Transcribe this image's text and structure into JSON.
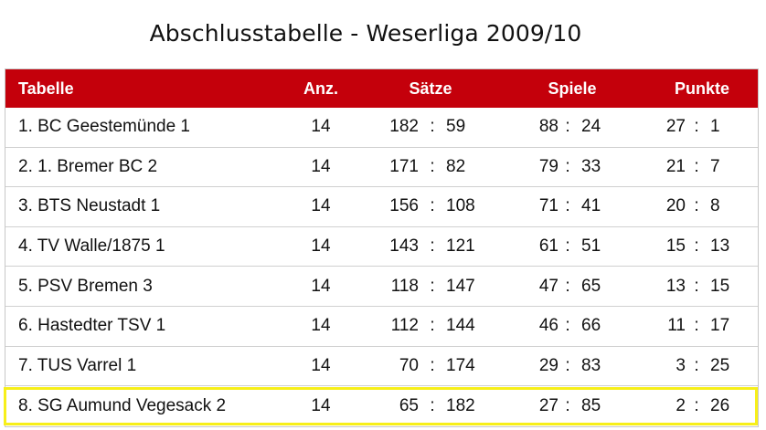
{
  "title": "Abschlusstabelle - Weserliga 2009/10",
  "header": {
    "team": "Tabelle",
    "anz": "Anz.",
    "saetze": "Sätze",
    "spiele": "Spiele",
    "punkte": "Punkte"
  },
  "colon": ":",
  "rows": [
    {
      "team": "1. BC Geestemünde 1",
      "anz": "14",
      "saetze_won": "182",
      "saetze_lost": "59",
      "spiele_won": "88",
      "spiele_lost": "24",
      "punkte_plus": "27",
      "punkte_minus": "1"
    },
    {
      "team": "2. 1. Bremer BC 2",
      "anz": "14",
      "saetze_won": "171",
      "saetze_lost": "82",
      "spiele_won": "79",
      "spiele_lost": "33",
      "punkte_plus": "21",
      "punkte_minus": "7"
    },
    {
      "team": "3. BTS Neustadt 1",
      "anz": "14",
      "saetze_won": "156",
      "saetze_lost": "108",
      "spiele_won": "71",
      "spiele_lost": "41",
      "punkte_plus": "20",
      "punkte_minus": "8"
    },
    {
      "team": "4. TV Walle/1875 1",
      "anz": "14",
      "saetze_won": "143",
      "saetze_lost": "121",
      "spiele_won": "61",
      "spiele_lost": "51",
      "punkte_plus": "15",
      "punkte_minus": "13"
    },
    {
      "team": "5. PSV Bremen 3",
      "anz": "14",
      "saetze_won": "118",
      "saetze_lost": "147",
      "spiele_won": "47",
      "spiele_lost": "65",
      "punkte_plus": "13",
      "punkte_minus": "15"
    },
    {
      "team": "6. Hastedter TSV 1",
      "anz": "14",
      "saetze_won": "112",
      "saetze_lost": "144",
      "spiele_won": "46",
      "spiele_lost": "66",
      "punkte_plus": "11",
      "punkte_minus": "17"
    },
    {
      "team": "7. TUS Varrel 1",
      "anz": "14",
      "saetze_won": "70",
      "saetze_lost": "174",
      "spiele_won": "29",
      "spiele_lost": "83",
      "punkte_plus": "3",
      "punkte_minus": "25"
    },
    {
      "team": "8. SG Aumund Vegesack 2",
      "anz": "14",
      "saetze_won": "65",
      "saetze_lost": "182",
      "spiele_won": "27",
      "spiele_lost": "85",
      "punkte_plus": "2",
      "punkte_minus": "26"
    }
  ],
  "colors": {
    "header_background": "#c4000b",
    "header_text": "#ffffff",
    "highlight": "#f7ef19"
  }
}
